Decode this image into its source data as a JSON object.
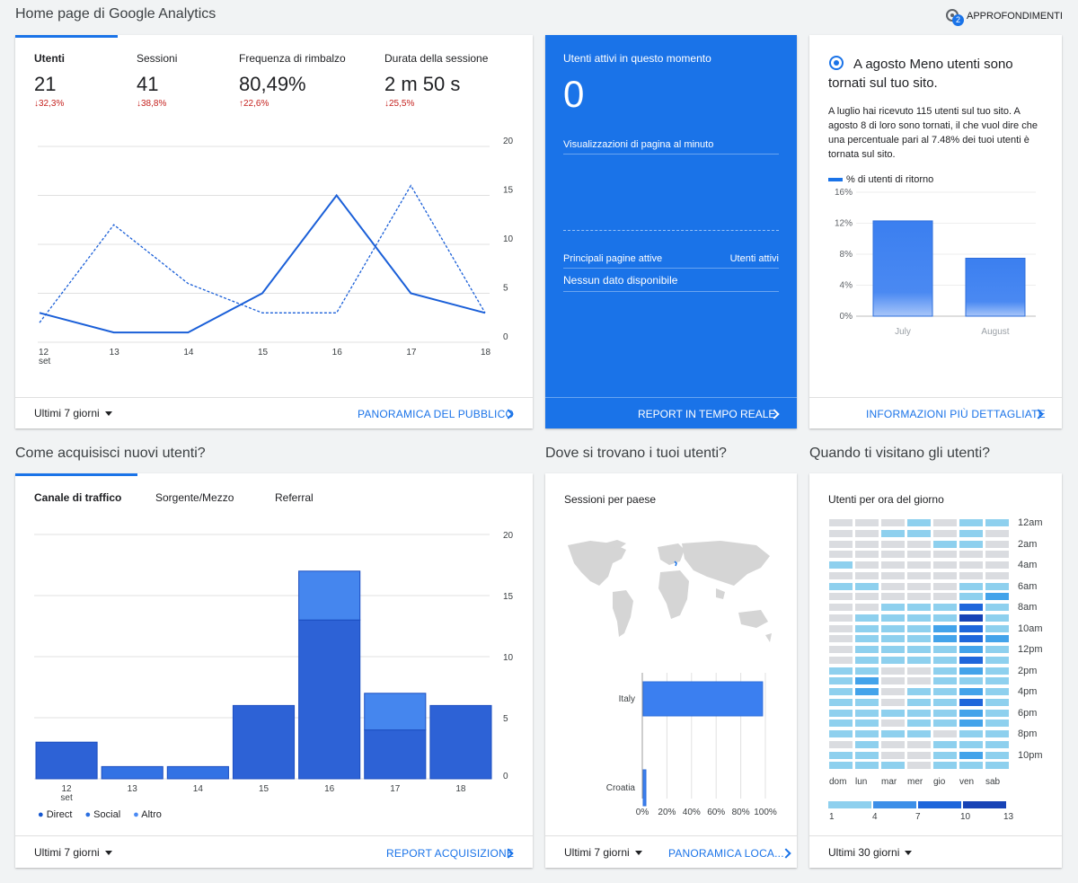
{
  "page": {
    "title": "Home page di Google Analytics",
    "insights_label": "APPROFONDIMENTI",
    "insights_count": "2"
  },
  "audience": {
    "metrics": [
      {
        "label": "Utenti",
        "value": "21",
        "delta": "32,3%",
        "dir": "down"
      },
      {
        "label": "Sessioni",
        "value": "41",
        "delta": "38,8%",
        "dir": "down"
      },
      {
        "label": "Frequenza di rimbalzo",
        "value": "80,49%",
        "delta": "22,6%",
        "dir": "up"
      },
      {
        "label": "Durata della sessione",
        "value": "2 m 50 s",
        "delta": "25,5%",
        "dir": "down"
      }
    ],
    "x_labels": [
      "12",
      "13",
      "14",
      "15",
      "16",
      "17",
      "18"
    ],
    "x_sublabel": "set",
    "y_labels": [
      "20",
      "15",
      "10",
      "5",
      "0"
    ],
    "date_range": "Ultimi 7 giorni",
    "link": "PANORAMICA DEL PUBBLICO"
  },
  "realtime": {
    "title": "Utenti attivi in questo momento",
    "value": "0",
    "pageviews_label": "Visualizzazioni di pagina al minuto",
    "top_pages": "Principali pagine attive",
    "active_users": "Utenti attivi",
    "no_data": "Nessun dato disponibile",
    "link": "REPORT IN TEMPO REALE"
  },
  "insight": {
    "title": "A agosto Meno utenti sono tornati sul tuo sito.",
    "body": "A luglio hai ricevuto 115 utenti sul tuo sito. A agosto 8 di loro sono tornati, il che vuol dire che una percentuale pari al 7.48% dei tuoi utenti è tornata sul sito.",
    "legend": "% di utenti di ritorno",
    "link": "INFORMAZIONI PIÙ DETTAGLIATE"
  },
  "acquisition": {
    "section_title": "Come acquisisci nuovi utenti?",
    "tabs": [
      "Canale di traffico",
      "Sorgente/Mezzo",
      "Referral"
    ],
    "legend": [
      "Direct",
      "Social",
      "Altro"
    ],
    "date_range": "Ultimi 7 giorni",
    "link": "REPORT ACQUISIZIONE"
  },
  "geo": {
    "section_title": "Dove si trovano i tuoi utenti?",
    "subtitle": "Sessioni per paese",
    "date_range": "Ultimi 7 giorni",
    "link": "PANORAMICA LOCA...",
    "x_ticks": [
      "0%",
      "20%",
      "40%",
      "60%",
      "80%",
      "100%"
    ]
  },
  "time": {
    "section_title": "Quando ti visitano gli utenti?",
    "subtitle": "Utenti per ora del giorno",
    "hours": [
      "12am",
      "2am",
      "4am",
      "6am",
      "8am",
      "10am",
      "12pm",
      "2pm",
      "4pm",
      "6pm",
      "8pm",
      "10pm"
    ],
    "days": [
      "dom",
      "lun",
      "mar",
      "mer",
      "gio",
      "ven",
      "sab"
    ],
    "scale": [
      "1",
      "4",
      "7",
      "10",
      "13"
    ],
    "date_range": "Ultimi 30 giorni"
  },
  "colors": {
    "accent": "#1a73e8",
    "realtime_bg": "#1a73e8",
    "negative": "#c5221f"
  },
  "chart_data": [
    {
      "type": "line",
      "x": [
        "12 set",
        "13",
        "14",
        "15",
        "16",
        "17",
        "18"
      ],
      "ylim": [
        0,
        20
      ],
      "series": [
        {
          "values": [
            3,
            1,
            1,
            5,
            15,
            5,
            3
          ]
        },
        {
          "values": [
            2,
            12,
            6,
            3,
            3,
            16,
            3
          ]
        }
      ]
    },
    {
      "type": "bar",
      "categories": [
        "July",
        "August"
      ],
      "values": [
        12.3,
        7.48
      ],
      "ylabel_ticks": [
        "16%",
        "12%",
        "8%",
        "4%",
        "0%"
      ],
      "ylim": [
        0,
        16
      ],
      "series_name": "% di utenti di ritorno"
    },
    {
      "type": "bar",
      "stacked": true,
      "categories": [
        "12 set",
        "13",
        "14",
        "15",
        "16",
        "17",
        "18"
      ],
      "ylim": [
        0,
        20
      ],
      "y_ticks": [
        "20",
        "15",
        "10",
        "5",
        "0"
      ],
      "series": [
        {
          "name": "Direct",
          "values": [
            3,
            0,
            0,
            6,
            13,
            4,
            6
          ]
        },
        {
          "name": "Social",
          "values": [
            0,
            1,
            1,
            0,
            0,
            0,
            0
          ]
        },
        {
          "name": "Altro",
          "values": [
            0,
            0,
            0,
            0,
            4,
            3,
            0
          ]
        }
      ]
    },
    {
      "type": "bar",
      "orientation": "horizontal",
      "categories": [
        "Italy",
        "Croatia"
      ],
      "values": [
        97,
        2
      ],
      "unit": "%"
    },
    {
      "type": "heatmap",
      "days": [
        "dom",
        "lun",
        "mar",
        "mer",
        "gio",
        "ven",
        "sab"
      ],
      "levels": [
        [
          0,
          0,
          0,
          1,
          0,
          1,
          1
        ],
        [
          0,
          0,
          1,
          1,
          0,
          1,
          0
        ],
        [
          0,
          0,
          0,
          0,
          1,
          1,
          0
        ],
        [
          0,
          0,
          0,
          0,
          0,
          0,
          0
        ],
        [
          1,
          0,
          0,
          0,
          0,
          0,
          0
        ],
        [
          0,
          0,
          0,
          0,
          0,
          0,
          0
        ],
        [
          1,
          1,
          0,
          0,
          0,
          1,
          1
        ],
        [
          0,
          0,
          0,
          0,
          0,
          1,
          2
        ],
        [
          0,
          0,
          1,
          1,
          1,
          3,
          1
        ],
        [
          0,
          1,
          1,
          1,
          1,
          4,
          1
        ],
        [
          0,
          1,
          1,
          1,
          2,
          3,
          1
        ],
        [
          0,
          1,
          1,
          1,
          2,
          3,
          2
        ],
        [
          0,
          1,
          1,
          1,
          1,
          2,
          1
        ],
        [
          0,
          1,
          1,
          1,
          1,
          3,
          1
        ],
        [
          1,
          1,
          0,
          0,
          1,
          2,
          1
        ],
        [
          1,
          2,
          0,
          0,
          1,
          1,
          1
        ],
        [
          1,
          2,
          0,
          1,
          1,
          2,
          1
        ],
        [
          1,
          1,
          0,
          1,
          1,
          3,
          1
        ],
        [
          1,
          1,
          1,
          1,
          1,
          2,
          1
        ],
        [
          1,
          1,
          0,
          1,
          1,
          2,
          1
        ],
        [
          1,
          1,
          1,
          1,
          0,
          1,
          1
        ],
        [
          0,
          1,
          0,
          0,
          1,
          1,
          1
        ],
        [
          1,
          1,
          0,
          0,
          1,
          2,
          1
        ],
        [
          1,
          1,
          1,
          0,
          1,
          1,
          1
        ]
      ]
    }
  ]
}
